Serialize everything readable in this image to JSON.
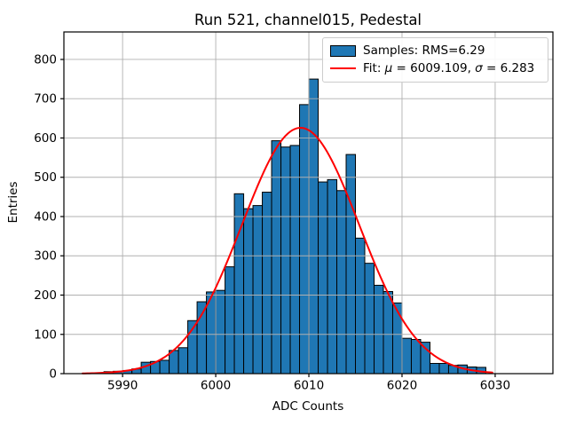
{
  "title": "Run 521, channel015, Pedestal",
  "axes": {
    "xlabel": "ADC Counts",
    "ylabel": "Entries"
  },
  "legend": {
    "samples_label": "Samples: RMS=6.29",
    "fit_prefix": "Fit: ",
    "fit_mu_symbol": "μ",
    "fit_mu_rest": " = 6009.109, ",
    "fit_sigma_symbol": "σ",
    "fit_sigma_rest": " = 6.283"
  },
  "colors": {
    "bar_fill": "#1f77b4",
    "bar_edge": "#000000",
    "fit_line": "#ff0000",
    "grid": "#b0b0b0",
    "spine": "#000000",
    "text": "#000000",
    "legend_edge": "#cccccc"
  },
  "chart_data": {
    "type": "bar",
    "subtype": "histogram",
    "title": "Run 521, channel015, Pedestal",
    "xlabel": "ADC Counts",
    "ylabel": "Entries",
    "grid": true,
    "legend_position": "upper right",
    "legend": [
      "Samples: RMS=6.29",
      "Fit: μ = 6009.109, σ = 6.283"
    ],
    "bin_width": 1,
    "bin_left_edges": [
      5987,
      5988,
      5989,
      5990,
      5991,
      5992,
      5993,
      5994,
      5995,
      5996,
      5997,
      5998,
      5999,
      6000,
      6001,
      6002,
      6003,
      6004,
      6005,
      6006,
      6007,
      6008,
      6009,
      6010,
      6011,
      6012,
      6013,
      6014,
      6015,
      6016,
      6017,
      6018,
      6019,
      6020,
      6021,
      6022,
      6023,
      6024,
      6025,
      6026,
      6027,
      6028
    ],
    "values": [
      2,
      5,
      6,
      8,
      12,
      29,
      31,
      34,
      59,
      66,
      135,
      183,
      208,
      212,
      272,
      458,
      420,
      428,
      462,
      593,
      577,
      581,
      685,
      750,
      488,
      494,
      466,
      558,
      345,
      281,
      225,
      209,
      180,
      90,
      87,
      80,
      26,
      26,
      21,
      22,
      17,
      16
    ],
    "fit": {
      "type": "gaussian",
      "mu": 6009.109,
      "sigma": 6.283,
      "amplitude": 626,
      "x_range": [
        5985.7,
        6029.7
      ]
    },
    "xlim": [
      5983.7,
      6036.2
    ],
    "ylim": [
      0,
      870
    ],
    "xticks": [
      5990,
      6000,
      6010,
      6020,
      6030
    ],
    "yticks": [
      0,
      100,
      200,
      300,
      400,
      500,
      600,
      700,
      800
    ]
  }
}
